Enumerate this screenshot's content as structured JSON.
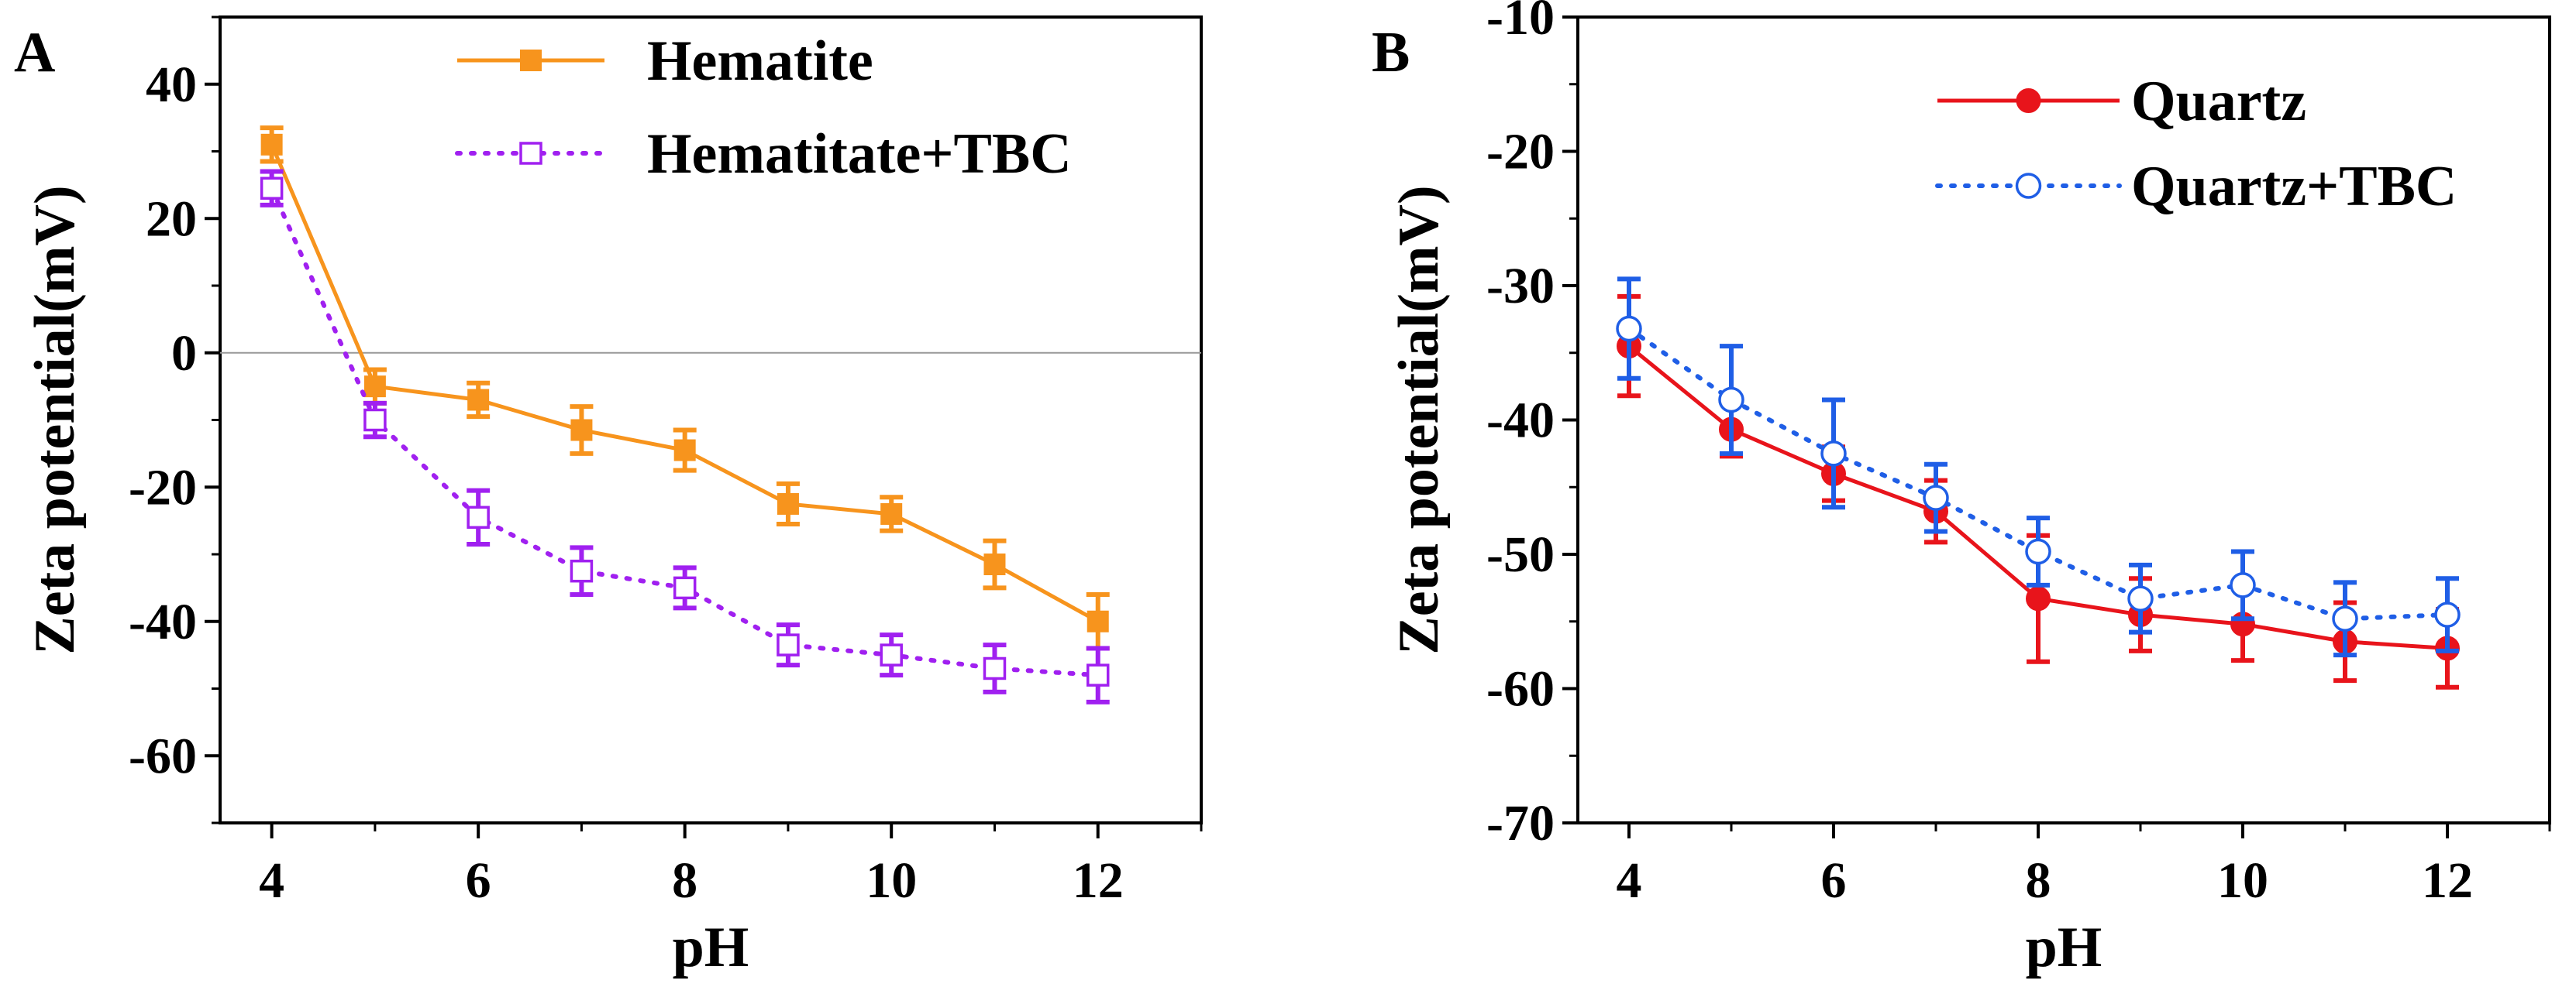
{
  "chart_data": [
    {
      "type": "line",
      "panel_label": "A",
      "xlabel": "pH",
      "ylabel": "Zeta potential(mV)",
      "xlim": [
        3.5,
        13
      ],
      "ylim": [
        -70,
        50
      ],
      "xticks": [
        4,
        6,
        8,
        10,
        12
      ],
      "yticks": [
        -60,
        -40,
        -20,
        0,
        20,
        40
      ],
      "legend_position": "top-right",
      "zero_line": true,
      "x": [
        4,
        5,
        6,
        7,
        8,
        9,
        10,
        11,
        12
      ],
      "series": [
        {
          "name": "Hematite",
          "color": "#f7941d",
          "marker": "filled-square",
          "line": "solid",
          "values": [
            31,
            -5,
            -7,
            -11.5,
            -14.5,
            -22.5,
            -24,
            -31.5,
            -40
          ],
          "errors": [
            2.5,
            2.5,
            2.5,
            3.5,
            3,
            3,
            2.5,
            3.5,
            4
          ]
        },
        {
          "name": "Hematitate+TBC",
          "color": "#a020f0",
          "marker": "open-square",
          "line": "dotted",
          "values": [
            24.5,
            -10,
            -24.5,
            -32.5,
            -35,
            -43.5,
            -45,
            -47,
            -48
          ],
          "errors": [
            2.5,
            2.5,
            4,
            3.5,
            3,
            3,
            3,
            3.5,
            4
          ]
        }
      ]
    },
    {
      "type": "line",
      "panel_label": "B",
      "xlabel": "pH",
      "ylabel": "Zeta potential(mV)",
      "xlim": [
        3.5,
        13
      ],
      "ylim": [
        -70,
        -10
      ],
      "xticks": [
        4,
        6,
        8,
        10,
        12
      ],
      "yticks": [
        -70,
        -60,
        -50,
        -40,
        -30,
        -20,
        -10
      ],
      "legend_position": "top-right",
      "zero_line": false,
      "x": [
        4,
        5,
        6,
        7,
        8,
        9,
        10,
        11,
        12
      ],
      "series": [
        {
          "name": "Quartz",
          "color": "#e8141b",
          "marker": "filled-circle",
          "line": "solid",
          "values": [
            -34.5,
            -40.7,
            -44,
            -46.8,
            -53.3,
            -54.5,
            -55.2,
            -56.5,
            -57
          ],
          "errors": [
            3.7,
            2,
            2,
            2.3,
            4.7,
            2.7,
            2.7,
            2.9,
            2.9
          ]
        },
        {
          "name": "Quartz+TBC",
          "color": "#1f5ee6",
          "marker": "open-circle",
          "line": "dotted",
          "values": [
            -33.2,
            -38.5,
            -42.5,
            -45.8,
            -49.8,
            -53.3,
            -52.3,
            -54.8,
            -54.5
          ],
          "errors": [
            3.7,
            4,
            4,
            2.5,
            2.5,
            2.5,
            2.5,
            2.7,
            2.7
          ]
        }
      ]
    }
  ]
}
